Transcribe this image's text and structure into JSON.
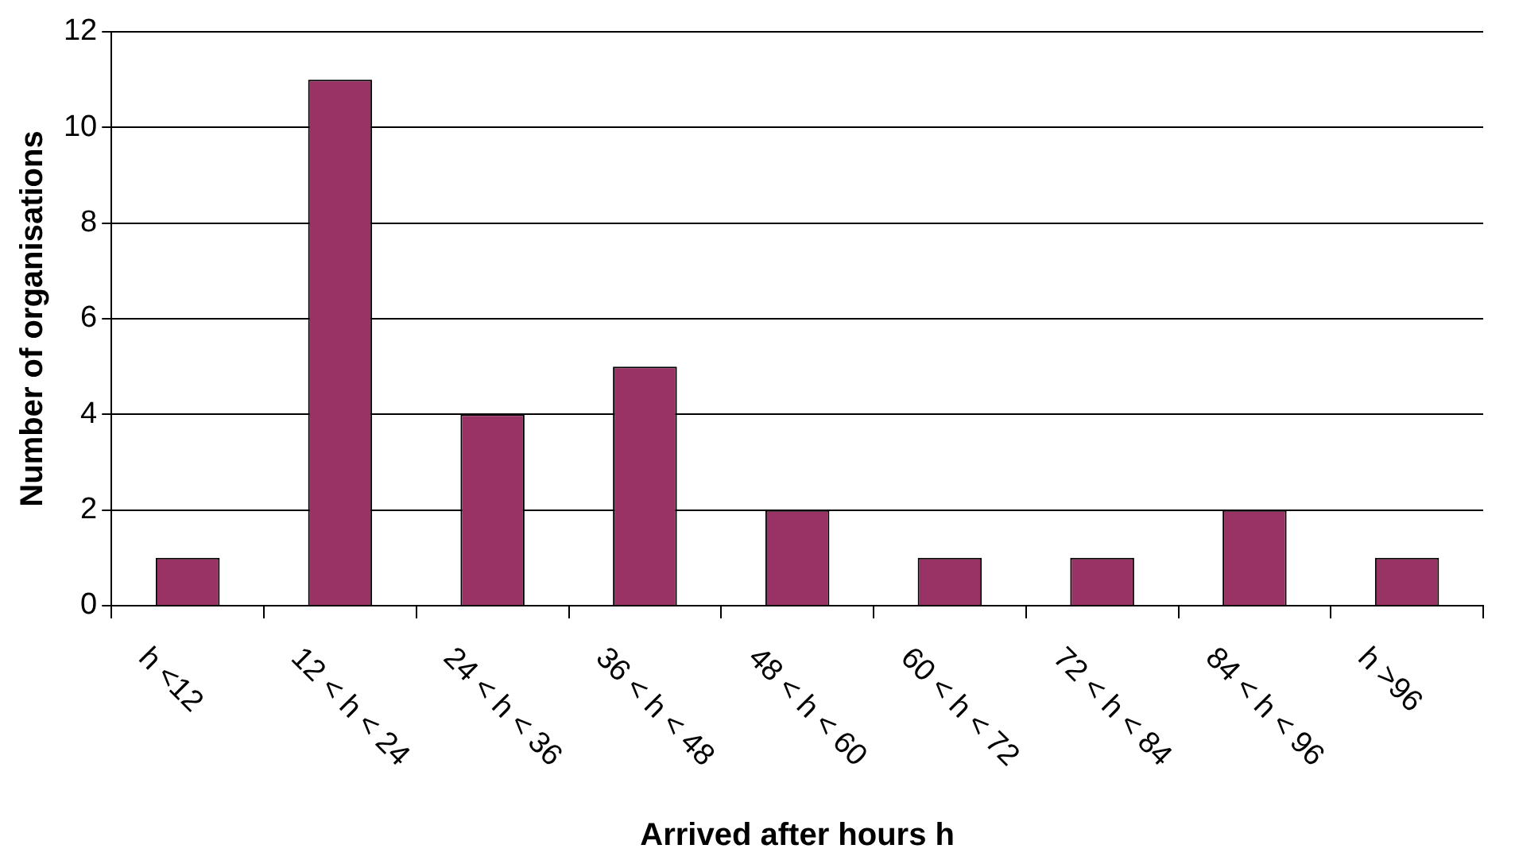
{
  "chart_data": {
    "type": "bar",
    "xlabel": "Arrived after hours h",
    "ylabel": "Number of organisations",
    "categories": [
      "h <12",
      "12 < h < 24",
      "24 < h < 36",
      "36 < h < 48",
      "48 < h < 60",
      "60 < h < 72",
      "72 < h < 84",
      "84 < h < 96",
      "h >96"
    ],
    "values": [
      1,
      11,
      4,
      5,
      2,
      1,
      1,
      2,
      1
    ],
    "color": "#993366",
    "ylim": [
      0,
      12
    ],
    "yticks": [
      0,
      2,
      4,
      6,
      8,
      10,
      12
    ],
    "grid": "y",
    "legend": false
  }
}
